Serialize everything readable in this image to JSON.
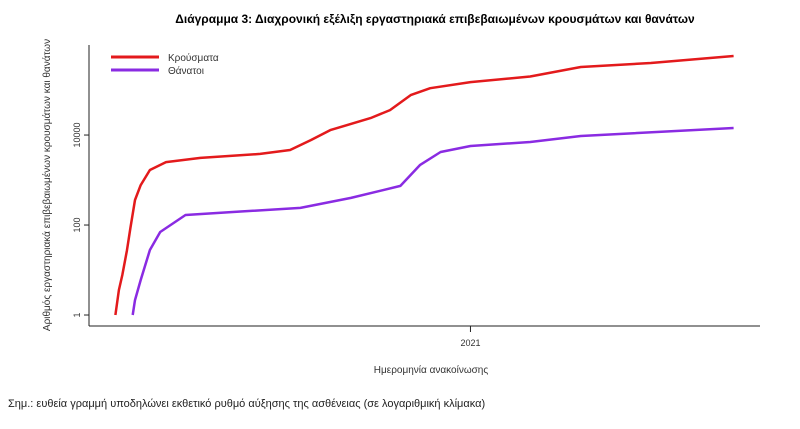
{
  "chart_data": {
    "type": "line",
    "title": "Διάγραμμα 3: Διαχρονική εξέλιξη εργαστηριακά επιβεβαιωμένων κρουσμάτων και θανάτων",
    "xlabel": "Ημερομηνία ανακοίνωσης",
    "ylabel": "Αριθμός εργαστηριακά επιβεβαιωμένων κρουσμάτων και θανάτων",
    "x_ticks": [
      {
        "x": 366,
        "label": "2021"
      }
    ],
    "y_scale": "log",
    "y_ticks": [
      {
        "y": 1,
        "label": "1"
      },
      {
        "y": 100,
        "label": "100"
      },
      {
        "y": 10000,
        "label": "10000"
      }
    ],
    "xlim": [
      34,
      618
    ],
    "ylim": [
      0.57,
      2000000
    ],
    "grid": false,
    "legend_position": "top-left",
    "series": [
      {
        "name": "Κρούσματα",
        "color": "#e31a1c",
        "x": [
          57,
          60,
          63,
          67,
          70,
          74,
          79,
          87,
          101,
          131,
          183,
          209,
          227,
          244,
          279,
          296,
          314,
          331,
          366,
          418,
          462,
          523,
          595
        ],
        "y": [
          1,
          3.6,
          7.7,
          27,
          86,
          360,
          770,
          1670,
          2500,
          3100,
          3800,
          4640,
          7700,
          12900,
          23800,
          35900,
          77000,
          110000,
          150000,
          200000,
          325000,
          400000,
          570000
        ]
      },
      {
        "name": "Θάνατοι",
        "color": "#8a2be2",
        "x": [
          72,
          74,
          79,
          87,
          96,
          118,
          166,
          218,
          262,
          305,
          322,
          340,
          366,
          418,
          462,
          595
        ],
        "y": [
          1,
          2.15,
          6,
          27.8,
          70,
          167,
          200,
          240,
          400,
          740,
          2150,
          4200,
          5700,
          7000,
          9500,
          14300
        ]
      }
    ]
  },
  "note": "Σημ.: ευθεία γραμμή υποδηλώνει εκθετικό ρυθμό αύξησης της ασθένειας (σε λογαριθμική κλίμακα)"
}
